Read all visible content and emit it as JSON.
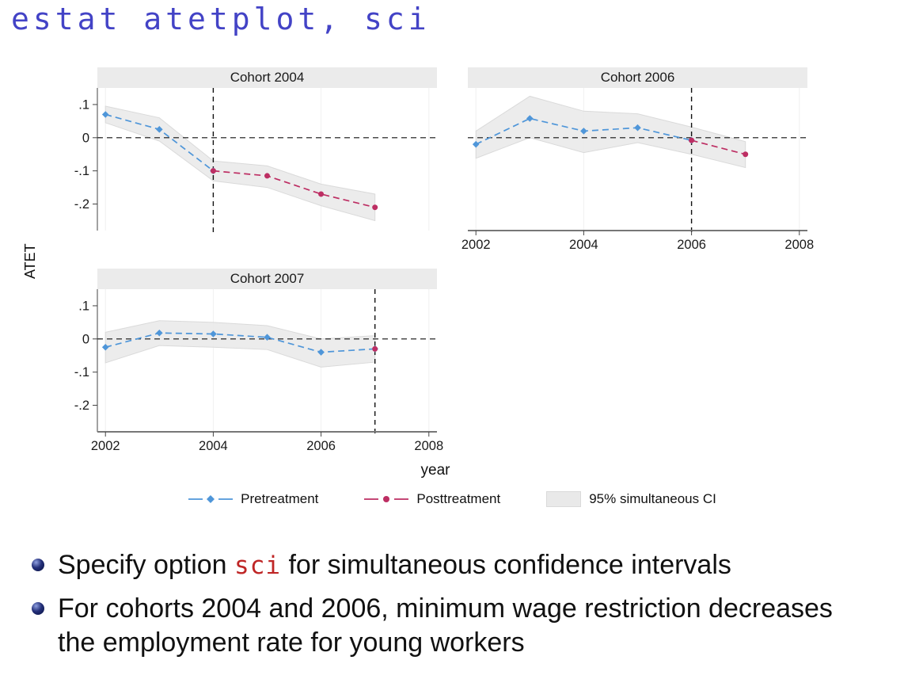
{
  "title": {
    "text": "estat atetplot, sci"
  },
  "colors": {
    "title": "#4343c6",
    "code": "#bf2626",
    "body_text": "#111111"
  },
  "figure": {
    "ylabel": "ATET",
    "xlabel": "year",
    "colors": {
      "pretreatment": "#4f96d9",
      "posttreatment": "#bd2e63",
      "ci_fill": "#e9e9e9",
      "ci_stroke": "#dadada",
      "title_band": "#ebebeb",
      "axis": "#777777",
      "reference_line": "#111111"
    },
    "legend": [
      {
        "label": "Pretreatment",
        "marker": "line-diamond",
        "color_key": "pretreatment"
      },
      {
        "label": "Posttreatment",
        "marker": "line-circle",
        "color_key": "posttreatment"
      },
      {
        "label": "95% simultaneous CI",
        "marker": "band",
        "color_key": "ci_fill"
      }
    ]
  },
  "chart_data": [
    {
      "type": "line",
      "title": "Cohort 2004",
      "treatment_year": 2004,
      "xlim": [
        2001.85,
        2008.15
      ],
      "ylim": [
        -0.28,
        0.15
      ],
      "xticks": [
        2002,
        2004,
        2006,
        2008
      ],
      "xtick_labels": [
        "2002",
        "2004",
        "2006",
        "2008"
      ],
      "yticks": [
        0.1,
        0,
        -0.1,
        -0.2
      ],
      "ytick_labels": [
        ".1",
        "0",
        "-.1",
        "-.2"
      ],
      "show_y_labels": true,
      "show_x_labels": false,
      "series": [
        {
          "name": "Pretreatment",
          "marker": "diamond",
          "color_key": "pretreatment",
          "x": [
            2002,
            2003,
            2004
          ],
          "values": [
            0.07,
            0.025,
            -0.1
          ]
        },
        {
          "name": "Posttreatment",
          "marker": "circle",
          "color_key": "posttreatment",
          "x": [
            2004,
            2005,
            2006,
            2007
          ],
          "values": [
            -0.1,
            -0.115,
            -0.17,
            -0.21
          ]
        }
      ],
      "ci": {
        "x": [
          2002,
          2003,
          2004,
          2005,
          2006,
          2007
        ],
        "upper": [
          0.095,
          0.06,
          -0.07,
          -0.085,
          -0.14,
          -0.17
        ],
        "lower": [
          0.045,
          -0.01,
          -0.13,
          -0.15,
          -0.205,
          -0.25
        ]
      }
    },
    {
      "type": "line",
      "title": "Cohort 2006",
      "treatment_year": 2006,
      "xlim": [
        2001.85,
        2008.15
      ],
      "ylim": [
        -0.28,
        0.15
      ],
      "xticks": [
        2002,
        2004,
        2006,
        2008
      ],
      "xtick_labels": [
        "2002",
        "2004",
        "2006",
        "2008"
      ],
      "yticks": [
        0.1,
        0,
        -0.1,
        -0.2
      ],
      "ytick_labels": [
        ".1",
        "0",
        "-.1",
        "-.2"
      ],
      "show_y_labels": false,
      "show_x_labels": true,
      "series": [
        {
          "name": "Pretreatment",
          "marker": "diamond",
          "color_key": "pretreatment",
          "x": [
            2002,
            2003,
            2004,
            2005,
            2006
          ],
          "values": [
            -0.02,
            0.058,
            0.02,
            0.03,
            -0.008
          ]
        },
        {
          "name": "Posttreatment",
          "marker": "circle",
          "color_key": "posttreatment",
          "x": [
            2006,
            2007
          ],
          "values": [
            -0.008,
            -0.05
          ]
        }
      ],
      "ci": {
        "x": [
          2002,
          2003,
          2004,
          2005,
          2006,
          2007
        ],
        "upper": [
          0.02,
          0.125,
          0.08,
          0.072,
          0.032,
          -0.012
        ],
        "lower": [
          -0.062,
          0.0,
          -0.045,
          -0.015,
          -0.05,
          -0.09
        ]
      }
    },
    {
      "type": "line",
      "title": "Cohort 2007",
      "treatment_year": 2007,
      "xlim": [
        2001.85,
        2008.15
      ],
      "ylim": [
        -0.28,
        0.15
      ],
      "xticks": [
        2002,
        2004,
        2006,
        2008
      ],
      "xtick_labels": [
        "2002",
        "2004",
        "2006",
        "2008"
      ],
      "yticks": [
        0.1,
        0,
        -0.1,
        -0.2
      ],
      "ytick_labels": [
        ".1",
        "0",
        "-.1",
        "-.2"
      ],
      "show_y_labels": true,
      "show_x_labels": true,
      "series": [
        {
          "name": "Pretreatment",
          "marker": "diamond",
          "color_key": "pretreatment",
          "x": [
            2002,
            2003,
            2004,
            2005,
            2006,
            2007
          ],
          "values": [
            -0.025,
            0.018,
            0.015,
            0.005,
            -0.04,
            -0.03
          ]
        },
        {
          "name": "Posttreatment",
          "marker": "circle",
          "color_key": "posttreatment",
          "x": [
            2007
          ],
          "values": [
            -0.03
          ]
        }
      ],
      "ci": {
        "x": [
          2002,
          2003,
          2004,
          2005,
          2006,
          2007
        ],
        "upper": [
          0.02,
          0.055,
          0.05,
          0.04,
          0.0,
          0.01
        ],
        "lower": [
          -0.072,
          -0.02,
          -0.025,
          -0.032,
          -0.085,
          -0.07
        ]
      }
    }
  ],
  "bullets": [
    {
      "segments": [
        {
          "text": "Specify option ",
          "style": "plain"
        },
        {
          "text": "sci",
          "style": "code"
        },
        {
          "text": " for simultaneous confidence intervals",
          "style": "plain"
        }
      ]
    },
    {
      "segments": [
        {
          "text": "For cohorts 2004 and 2006, minimum wage restriction decreases the employment rate for young workers",
          "style": "plain"
        }
      ]
    }
  ]
}
